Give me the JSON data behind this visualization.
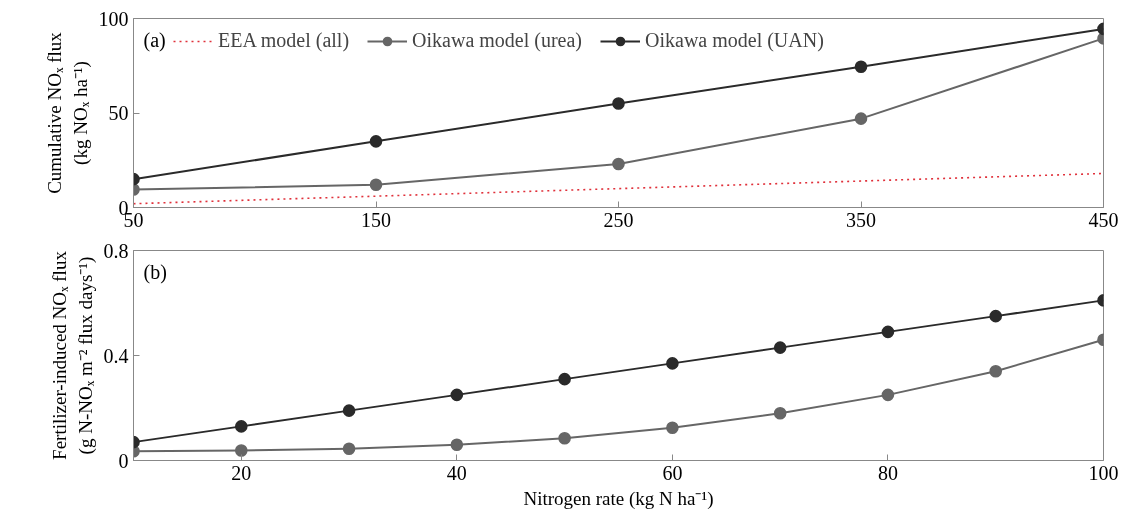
{
  "chart_data": [
    {
      "type": "line",
      "ylabel": "Cumulative NOₓ flux\n(kg NOₓ ha⁻¹)",
      "annotations": [
        "(a)"
      ],
      "x": [
        50,
        150,
        250,
        350,
        450
      ],
      "xlim": [
        50,
        450
      ],
      "xticks": [
        50,
        150,
        250,
        350,
        450
      ],
      "ylim": [
        0,
        100
      ],
      "yticks": [
        0,
        50,
        100
      ],
      "grid": false,
      "legend": "top left",
      "series": [
        {
          "name": "EEA model (all)",
          "color": "#e0303a",
          "values": [
            2,
            6,
            10,
            14,
            18
          ],
          "line_style": "dotted",
          "marker": "none"
        },
        {
          "name": "Oikawa model (urea)",
          "color": "#666666",
          "values": [
            9.5,
            12,
            23,
            47,
            89.5
          ],
          "line_style": "solid",
          "marker": "circle"
        },
        {
          "name": "Oikawa model (UAN)",
          "color": "#2a2a2a",
          "values": [
            15,
            35,
            55,
            74.5,
            94.5
          ],
          "line_style": "solid",
          "marker": "circle"
        }
      ]
    },
    {
      "type": "line",
      "xlabel": "Nitrogen rate (kg N ha⁻¹)",
      "ylabel": "Fertilizer-induced NOₓ flux\n(g N-NOₓ m⁻² flux days⁻¹)",
      "annotations": [
        "(b)"
      ],
      "x": [
        10,
        20,
        30,
        40,
        50,
        60,
        70,
        80,
        90,
        100
      ],
      "xlim": [
        10,
        100
      ],
      "xticks": [
        20,
        40,
        60,
        80,
        100
      ],
      "ylim": [
        0,
        0.8
      ],
      "yticks": [
        0,
        0.4,
        0.8
      ],
      "grid": false,
      "series": [
        {
          "color": "#666666",
          "values": [
            0.035,
            0.038,
            0.045,
            0.06,
            0.085,
            0.125,
            0.18,
            0.25,
            0.34,
            0.46
          ],
          "line_style": "solid",
          "marker": "circle"
        },
        {
          "color": "#2a2a2a",
          "values": [
            0.07,
            0.13,
            0.19,
            0.25,
            0.31,
            0.37,
            0.43,
            0.49,
            0.55,
            0.61
          ],
          "line_style": "solid",
          "marker": "circle"
        }
      ]
    }
  ]
}
